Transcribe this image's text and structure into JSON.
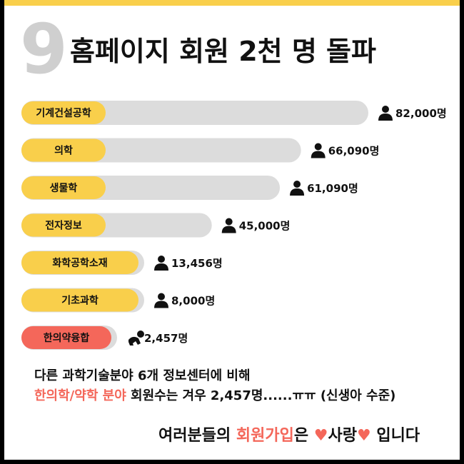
{
  "header": {
    "number": "9",
    "title": "홈페이지 회원 2천 명 돌파"
  },
  "colors": {
    "accent_yellow": "#f9cf4b",
    "accent_red": "#f4675a",
    "track_gray": "#dcdcdc",
    "number_gray": "#cfcfcf"
  },
  "chart_data": {
    "type": "bar",
    "orientation": "horizontal",
    "categories": [
      "기계건설공학",
      "의학",
      "생물학",
      "전자정보",
      "화학공학소재",
      "기초과학",
      "한의약융합"
    ],
    "values": [
      82000,
      66090,
      61090,
      45000,
      13456,
      8000,
      2457
    ],
    "value_labels": [
      "82,000명",
      "66,090명",
      "61,090명",
      "45,000명",
      "13,456명",
      "8,000명",
      "2,457명"
    ],
    "highlight_category": "한의약융합",
    "icons": [
      "person-icon",
      "person-icon",
      "person-icon",
      "person-icon",
      "person-icon",
      "person-icon",
      "baby-crawling-icon"
    ]
  },
  "footer": {
    "line1": "다른 과학기술분야 6개 정보센터에 비해",
    "line2_accent": "한의학/약학 분야",
    "line2_rest": " 회원수는 겨우 2,457명......ㅠㅠ (신생아 수준)",
    "closing_pre": "여러분들의 ",
    "closing_accent": "회원가입",
    "closing_mid": "은 ",
    "heart1": "♥",
    "closing_love": "사랑",
    "heart2": "♥",
    "closing_post": " 입니다"
  }
}
